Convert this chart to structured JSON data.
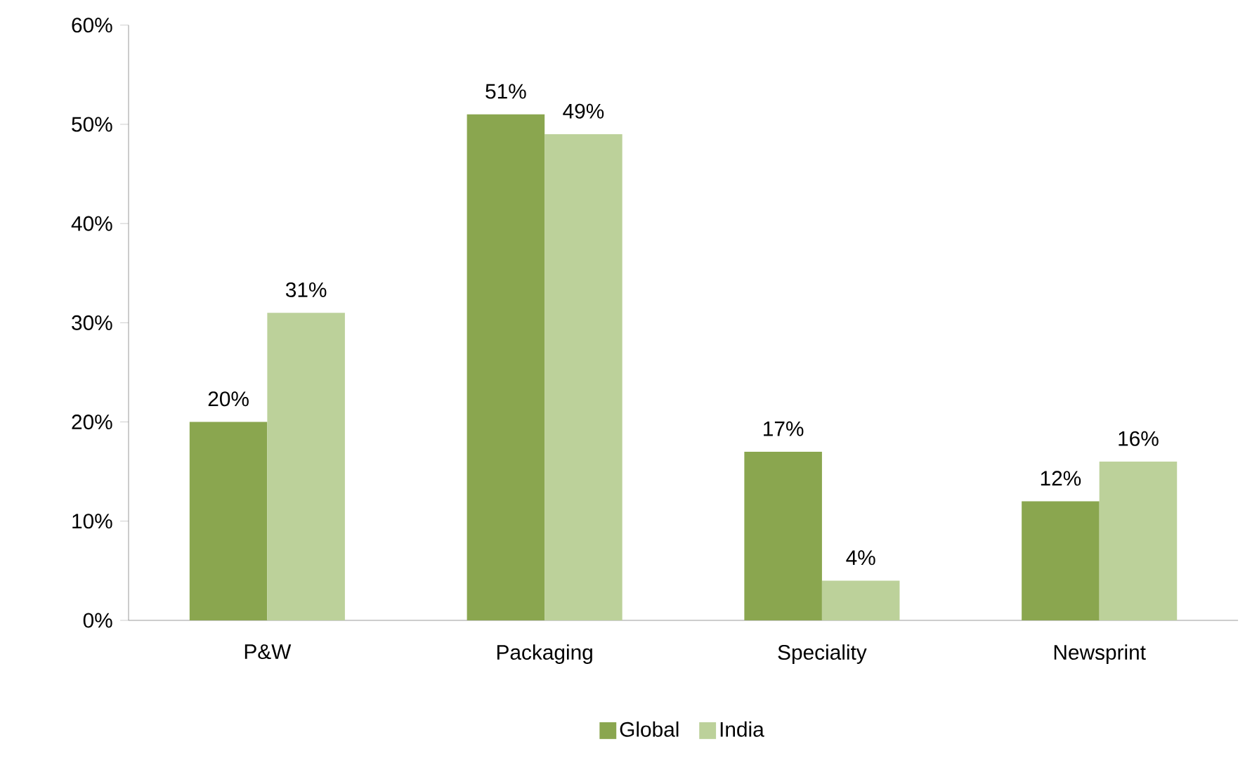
{
  "chart_data": {
    "type": "bar",
    "categories": [
      "P&W",
      "Packaging",
      "Speciality",
      "Newsprint"
    ],
    "series": [
      {
        "name": "Global",
        "color": "#8aa64f",
        "values": [
          20,
          51,
          17,
          12
        ],
        "value_labels": [
          "20%",
          "51%",
          "17%",
          "12%"
        ]
      },
      {
        "name": "India",
        "color": "#bcd19a",
        "values": [
          31,
          49,
          4,
          16
        ],
        "value_labels": [
          "31%",
          "49%",
          "4%",
          "16%"
        ]
      }
    ],
    "ylim": [
      0,
      60
    ],
    "yticks": [
      {
        "value": 0,
        "label": "0%"
      },
      {
        "value": 10,
        "label": "10%"
      },
      {
        "value": 20,
        "label": "20%"
      },
      {
        "value": 30,
        "label": "30%"
      },
      {
        "value": 40,
        "label": "40%"
      },
      {
        "value": 50,
        "label": "50%"
      },
      {
        "value": 60,
        "label": "60%"
      }
    ],
    "grid": false,
    "legend": "bottom"
  }
}
